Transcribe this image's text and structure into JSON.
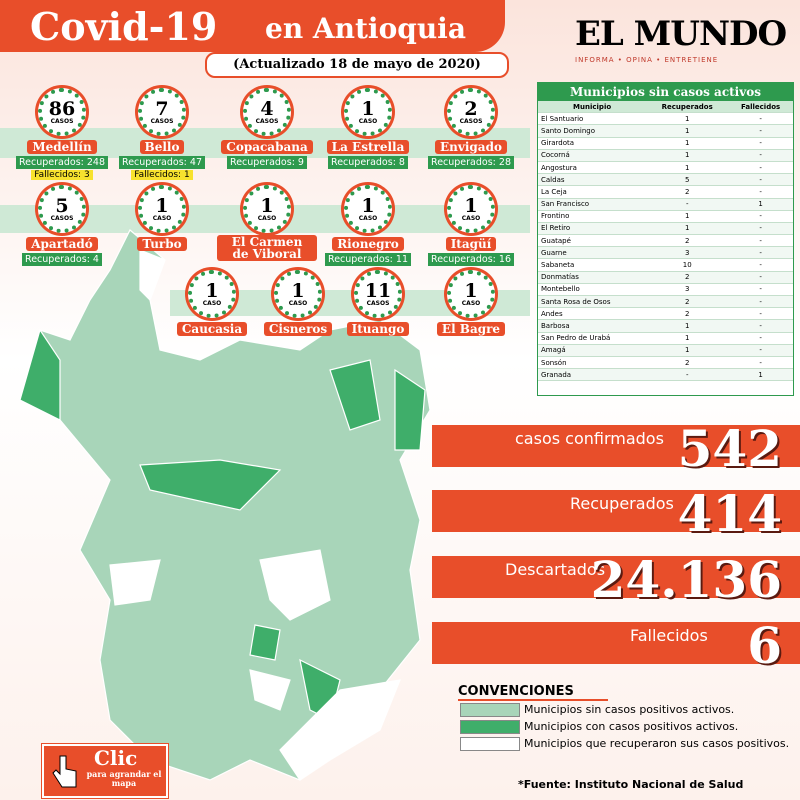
{
  "header": {
    "title": "Covid-19",
    "title_region": "en Antioquia",
    "subtitle": "(Actualizado 18 de mayo de 2020)"
  },
  "logo": {
    "name": "EL MUNDO",
    "tagline": "INFORMA • OPINA • ENTRETIENE"
  },
  "municipalities": [
    {
      "cases": "86",
      "unit": "CASOS",
      "name": "Medellín",
      "recovered": "Recuperados: 248",
      "deaths": "Fallecidos: 3"
    },
    {
      "cases": "7",
      "unit": "CASOS",
      "name": "Bello",
      "recovered": "Recuperados: 47",
      "deaths": "Fallecidos: 1"
    },
    {
      "cases": "4",
      "unit": "CASOS",
      "name": "Copacabana",
      "recovered": "Recuperados: 9"
    },
    {
      "cases": "1",
      "unit": "CASO",
      "name": "La Estrella",
      "recovered": "Recuperados: 8"
    },
    {
      "cases": "2",
      "unit": "CASOS",
      "name": "Envigado",
      "recovered": "Recuperados: 28"
    },
    {
      "cases": "5",
      "unit": "CASOS",
      "name": "Apartadó",
      "recovered": "Recuperados: 4"
    },
    {
      "cases": "1",
      "unit": "CASO",
      "name": "Turbo"
    },
    {
      "cases": "1",
      "unit": "CASO",
      "name": "El Carmen de Viboral"
    },
    {
      "cases": "1",
      "unit": "CASO",
      "name": "Rionegro",
      "recovered": "Recuperados: 11"
    },
    {
      "cases": "1",
      "unit": "CASO",
      "name": "Itagüí",
      "recovered": "Recuperados: 16"
    },
    {
      "cases": "1",
      "unit": "CASO",
      "name": "Caucasia"
    },
    {
      "cases": "1",
      "unit": "CASO",
      "name": "Cisneros"
    },
    {
      "cases": "11",
      "unit": "CASOS",
      "name": "Ituango"
    },
    {
      "cases": "1",
      "unit": "CASO",
      "name": "El Bagre"
    }
  ],
  "table": {
    "title": "Municipios sin casos activos",
    "columns": [
      "Municipio",
      "Recuperados",
      "Fallecidos"
    ],
    "rows": [
      [
        "El Santuario",
        "1",
        "-"
      ],
      [
        "Santo Domingo",
        "1",
        "-"
      ],
      [
        "Girardota",
        "1",
        "-"
      ],
      [
        "Cocorná",
        "1",
        "-"
      ],
      [
        "Angostura",
        "1",
        "-"
      ],
      [
        "Caldas",
        "5",
        "-"
      ],
      [
        "La Ceja",
        "2",
        "-"
      ],
      [
        "San Francisco",
        "-",
        "1"
      ],
      [
        "Frontino",
        "1",
        "-"
      ],
      [
        "El Retiro",
        "1",
        "-"
      ],
      [
        "Guatapé",
        "2",
        "-"
      ],
      [
        "Guarne",
        "3",
        "-"
      ],
      [
        "Sabaneta",
        "10",
        "-"
      ],
      [
        "Donmatías",
        "2",
        "-"
      ],
      [
        "Montebello",
        "3",
        "-"
      ],
      [
        "Santa Rosa de Osos",
        "2",
        "-"
      ],
      [
        "Andes",
        "2",
        "-"
      ],
      [
        "Barbosa",
        "1",
        "-"
      ],
      [
        "San Pedro de Urabá",
        "1",
        "-"
      ],
      [
        "Amagá",
        "1",
        "-"
      ],
      [
        "Sonsón",
        "2",
        "-"
      ],
      [
        "Granada",
        "-",
        "1"
      ]
    ]
  },
  "stats": [
    {
      "label": "casos confirmados",
      "value": "542"
    },
    {
      "label": "Recuperados",
      "value": "414"
    },
    {
      "label": "Descartados",
      "value": "24.136"
    },
    {
      "label": "Fallecidos",
      "value": "6"
    }
  ],
  "legend": {
    "title": "CONVENCIONES",
    "items": [
      "Municipios sin casos positivos activos.",
      "Municipios con casos positivos activos.",
      "Municipios que recuperaron sus casos positivos."
    ]
  },
  "source": "*Fuente: Instituto Nacional de Salud",
  "button": {
    "label": "Clic",
    "caption": "para agrandar el mapa"
  }
}
